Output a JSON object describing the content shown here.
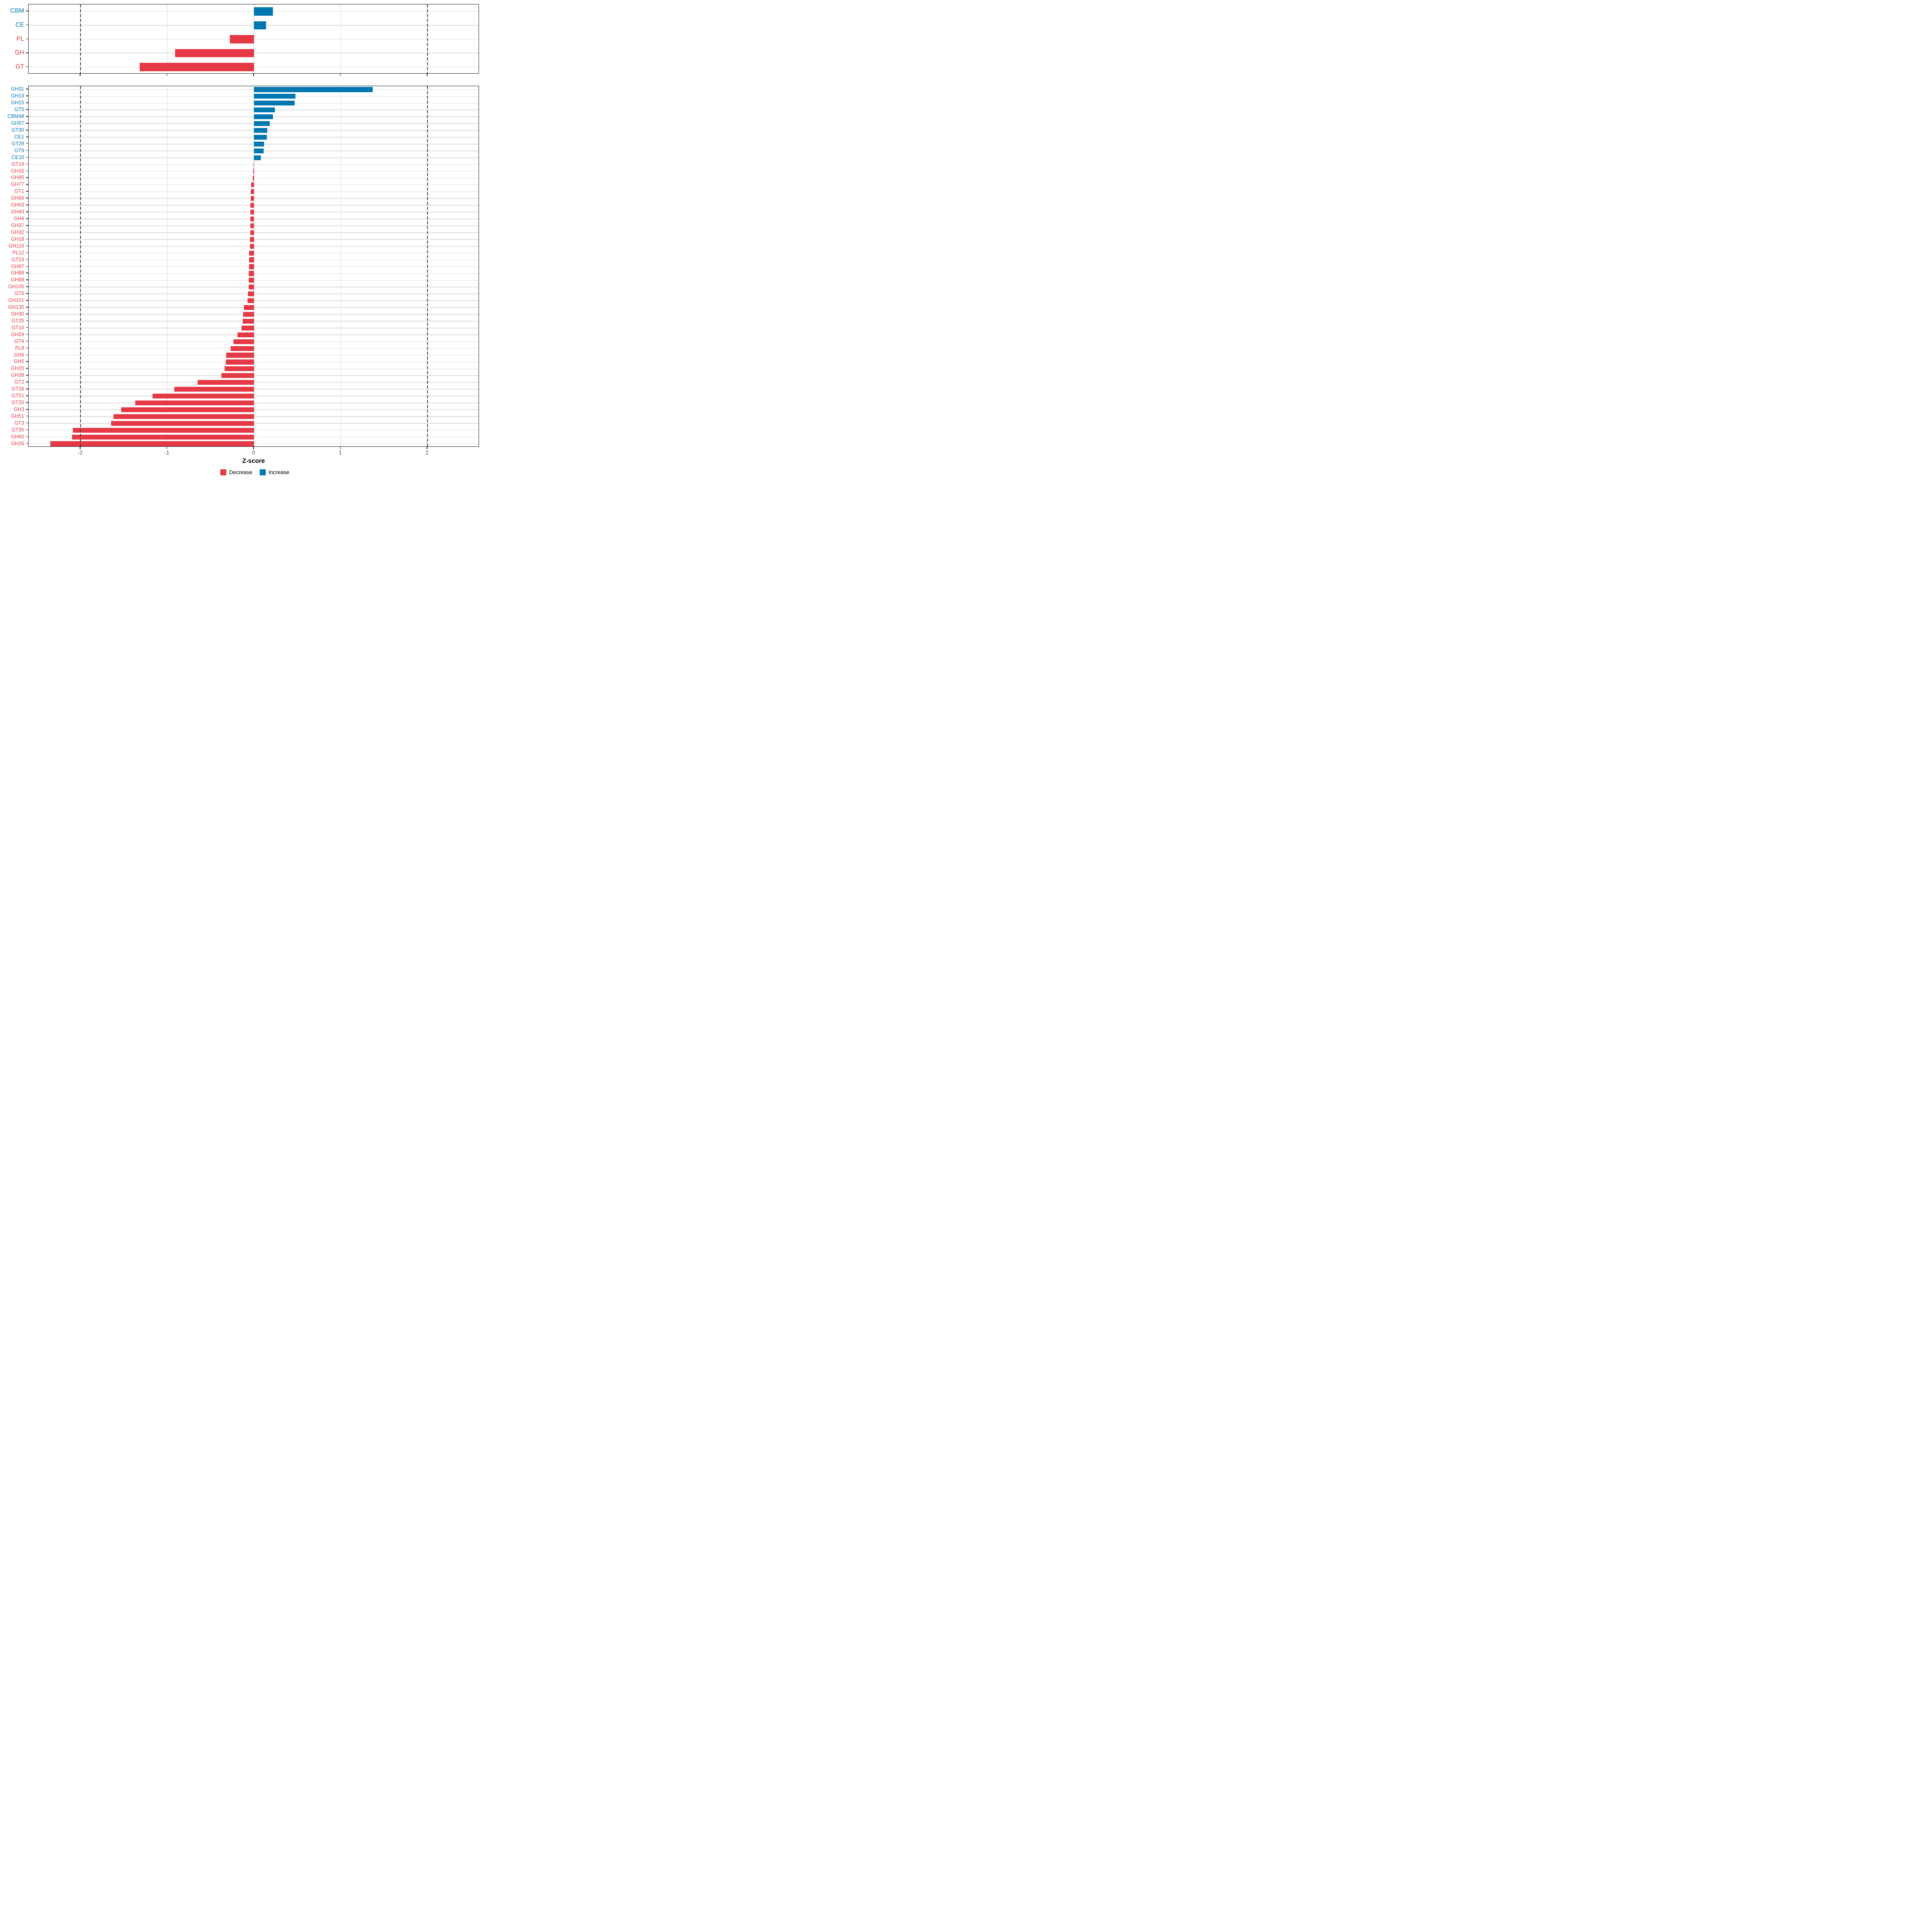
{
  "chart_data": {
    "type": "bar",
    "orientation": "horizontal",
    "title": "",
    "xlabel": "Z-score",
    "ylabel": "",
    "xlim": [
      -2.6,
      2.6
    ],
    "xticks": [
      -2,
      -1,
      0,
      1,
      2
    ],
    "xtick_labels": [
      "-2",
      "-1",
      "0",
      "1",
      "2"
    ],
    "dashed_vlines": [
      -2,
      2
    ],
    "grid": true,
    "legend_position": "bottom",
    "colors": {
      "decrease": "#E63946",
      "increase": "#0077B1"
    },
    "legend": [
      {
        "label": "Decrease",
        "key": "decrease",
        "color": "#E63946"
      },
      {
        "label": "Increase",
        "key": "increase",
        "color": "#0077B1"
      }
    ],
    "panels": [
      {
        "name": "cazyme-classes",
        "rows": [
          {
            "label": "CBM",
            "value": 0.22
          },
          {
            "label": "CE",
            "value": 0.14
          },
          {
            "label": "PL",
            "value": -0.28
          },
          {
            "label": "GH",
            "value": -0.91
          },
          {
            "label": "GT",
            "value": -1.32
          }
        ]
      },
      {
        "name": "cazyme-families",
        "rows": [
          {
            "label": "GH31",
            "value": 1.37
          },
          {
            "label": "GH13",
            "value": 0.48
          },
          {
            "label": "GH15",
            "value": 0.47
          },
          {
            "label": "GT5",
            "value": 0.24
          },
          {
            "label": "CBM48",
            "value": 0.22
          },
          {
            "label": "GH57",
            "value": 0.18
          },
          {
            "label": "GT30",
            "value": 0.155
          },
          {
            "label": "CE1",
            "value": 0.15
          },
          {
            "label": "GT28",
            "value": 0.115
          },
          {
            "label": "GT9",
            "value": 0.11
          },
          {
            "label": "CE10",
            "value": 0.08
          },
          {
            "label": "GT19",
            "value": -0.005
          },
          {
            "label": "GH33",
            "value": -0.01
          },
          {
            "label": "GH95",
            "value": -0.015
          },
          {
            "label": "GH77",
            "value": -0.033
          },
          {
            "label": "GT1",
            "value": -0.038
          },
          {
            "label": "GH66",
            "value": -0.039
          },
          {
            "label": "GH63",
            "value": -0.04
          },
          {
            "label": "GH43",
            "value": -0.041
          },
          {
            "label": "GH4",
            "value": -0.042
          },
          {
            "label": "GH37",
            "value": -0.043
          },
          {
            "label": "GH32",
            "value": -0.044
          },
          {
            "label": "GH18",
            "value": -0.045
          },
          {
            "label": "GH116",
            "value": -0.047
          },
          {
            "label": "PL12",
            "value": -0.055
          },
          {
            "label": "GT23",
            "value": -0.057
          },
          {
            "label": "GH97",
            "value": -0.058
          },
          {
            "label": "GH88",
            "value": -0.059
          },
          {
            "label": "GH68",
            "value": -0.06
          },
          {
            "label": "GH105",
            "value": -0.062
          },
          {
            "label": "GT6",
            "value": -0.07
          },
          {
            "label": "GH101",
            "value": -0.072
          },
          {
            "label": "GH130",
            "value": -0.115
          },
          {
            "label": "GH30",
            "value": -0.125
          },
          {
            "label": "GT25",
            "value": -0.132
          },
          {
            "label": "GT10",
            "value": -0.145
          },
          {
            "label": "GH29",
            "value": -0.19
          },
          {
            "label": "GT4",
            "value": -0.235
          },
          {
            "label": "PL8",
            "value": -0.27
          },
          {
            "label": "GH9",
            "value": -0.32
          },
          {
            "label": "GH5",
            "value": -0.325
          },
          {
            "label": "GH20",
            "value": -0.34
          },
          {
            "label": "GH38",
            "value": -0.375
          },
          {
            "label": "GT2",
            "value": -0.65
          },
          {
            "label": "GT26",
            "value": -0.92
          },
          {
            "label": "GT51",
            "value": -1.17
          },
          {
            "label": "GT20",
            "value": -1.37
          },
          {
            "label": "GH3",
            "value": -1.53
          },
          {
            "label": "GH51",
            "value": -1.62
          },
          {
            "label": "GT3",
            "value": -1.65
          },
          {
            "label": "GT35",
            "value": -2.09
          },
          {
            "label": "GH65",
            "value": -2.1
          },
          {
            "label": "GH26",
            "value": -2.35
          }
        ]
      }
    ]
  }
}
